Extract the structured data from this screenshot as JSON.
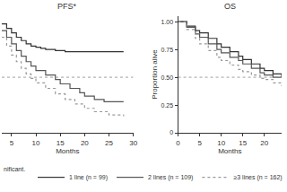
{
  "chart_data": [
    {
      "type": "line",
      "title": "PFS*",
      "x_label": "Months",
      "xlim": [
        3,
        30
      ],
      "xticks": [
        5,
        10,
        15,
        20,
        25,
        30
      ],
      "ylim": [
        0,
        1.05
      ],
      "tick_labels": "x",
      "reference_y": 0.5,
      "legend": "bottom",
      "note": "nificant.",
      "series": [
        {
          "name": "1 line (n = 99)",
          "color": "#333333",
          "line_style": "solid",
          "x": [
            3,
            4,
            5,
            6,
            7,
            8,
            9,
            10,
            11,
            12,
            14,
            16,
            28
          ],
          "values": [
            0.98,
            0.94,
            0.9,
            0.86,
            0.83,
            0.8,
            0.78,
            0.77,
            0.76,
            0.75,
            0.74,
            0.73,
            0.73
          ]
        },
        {
          "name": "2 lines (n = 109)",
          "color": "#555555",
          "line_style": "solid",
          "x": [
            3,
            4,
            5,
            6,
            7,
            8,
            9,
            10,
            12,
            14,
            15,
            17,
            19,
            20,
            22,
            24,
            28
          ],
          "values": [
            0.92,
            0.86,
            0.8,
            0.74,
            0.69,
            0.64,
            0.6,
            0.56,
            0.52,
            0.48,
            0.44,
            0.4,
            0.36,
            0.33,
            0.3,
            0.28,
            0.28
          ]
        },
        {
          "name": "≥3 lines (n = 162)",
          "color": "#999999",
          "line_style": "dot",
          "x": [
            3,
            4,
            5,
            6,
            7,
            8,
            9,
            10,
            12,
            14,
            16,
            18,
            20,
            22,
            25,
            28
          ],
          "values": [
            0.86,
            0.78,
            0.7,
            0.64,
            0.58,
            0.53,
            0.49,
            0.45,
            0.4,
            0.35,
            0.3,
            0.26,
            0.22,
            0.19,
            0.16,
            0.15
          ]
        }
      ]
    },
    {
      "type": "line",
      "title": "OS",
      "x_label": "Months",
      "y_label": "Proportion alive",
      "xlim": [
        0,
        24
      ],
      "xticks": [
        0,
        5,
        10,
        15,
        20
      ],
      "ylim": [
        0,
        1.05
      ],
      "yticks": [
        0,
        0.25,
        {
          "value": 0.5,
          "label": "0.50"
        },
        0.75,
        {
          "value": 1,
          "label": "1.00"
        }
      ],
      "reference_y": 0.5,
      "series": [
        {
          "name": "1 line (n = 99)",
          "color": "#333333",
          "line_style": "solid",
          "x": [
            0,
            2,
            4,
            5,
            7,
            9,
            10,
            12,
            14,
            15,
            17,
            19,
            20,
            22,
            24
          ],
          "values": [
            1,
            0.96,
            0.92,
            0.9,
            0.85,
            0.8,
            0.77,
            0.73,
            0.69,
            0.66,
            0.62,
            0.58,
            0.56,
            0.53,
            0.5
          ]
        },
        {
          "name": "2 lines (n = 109)",
          "color": "#555555",
          "line_style": "solid",
          "x": [
            0,
            2,
            4,
            5,
            7,
            9,
            10,
            12,
            14,
            15,
            17,
            19,
            20,
            22,
            24
          ],
          "values": [
            1,
            0.95,
            0.89,
            0.86,
            0.8,
            0.75,
            0.72,
            0.68,
            0.65,
            0.62,
            0.58,
            0.54,
            0.52,
            0.5,
            0.5
          ]
        },
        {
          "name": "≥3 lines (n = 162)",
          "color": "#999999",
          "line_style": "dot",
          "x": [
            0,
            2,
            4,
            5,
            7,
            9,
            10,
            12,
            14,
            15,
            17,
            19,
            20,
            22,
            24
          ],
          "values": [
            1,
            0.93,
            0.85,
            0.8,
            0.74,
            0.68,
            0.65,
            0.61,
            0.57,
            0.55,
            0.52,
            0.49,
            0.48,
            0.45,
            0.42
          ]
        }
      ]
    }
  ]
}
